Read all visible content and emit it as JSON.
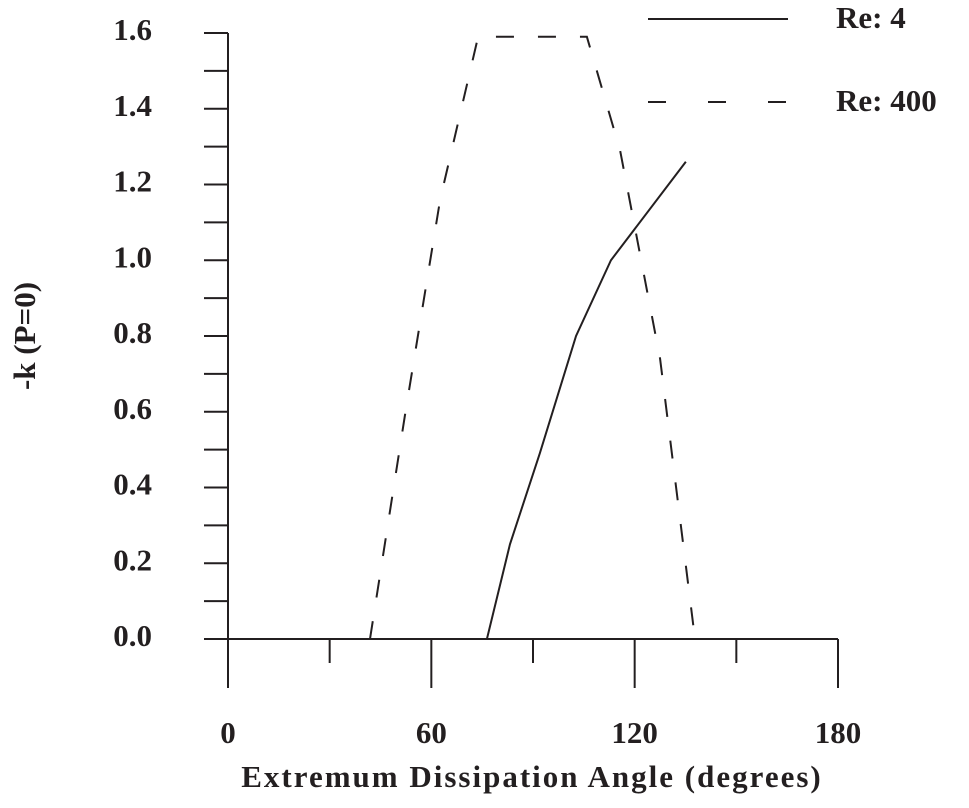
{
  "chart_data": {
    "type": "line",
    "xlabel": "Extremum Dissipation Angle  (degrees)",
    "ylabel": "-k (P=0)",
    "series": [
      {
        "name": "Re: 4",
        "color": "#231f20",
        "style": "solid",
        "x": [
          76.4,
          83.2,
          92,
          102.7,
          113,
          135.1
        ],
        "values": [
          0,
          0.25,
          0.49,
          0.8,
          1.0,
          1.26
        ]
      },
      {
        "name": "Re: 400",
        "color": "#231f20",
        "style": "dashed",
        "x": [
          41.9,
          52.2,
          62.6,
          73.8,
          105.9,
          115.7,
          127.5,
          137.8
        ],
        "values": [
          0,
          0.59,
          1.16,
          1.59,
          1.59,
          1.29,
          0.74,
          0
        ]
      }
    ],
    "xlim": [
      0,
      180
    ],
    "xticks": [
      0,
      60,
      120,
      180
    ],
    "xticks_minor": [
      30,
      90,
      150
    ],
    "ylim": [
      0,
      1.6
    ],
    "yticks": [
      {
        "value": 0,
        "label": "0.0"
      },
      0.2,
      0.4,
      0.6,
      0.8,
      {
        "value": 1,
        "label": "1.0"
      },
      1.2,
      1.4,
      1.6
    ],
    "yticks_minor": [
      0.1,
      0.3,
      0.5,
      0.7,
      0.9,
      1.1,
      1.3,
      1.5
    ],
    "legend": "upper right"
  }
}
